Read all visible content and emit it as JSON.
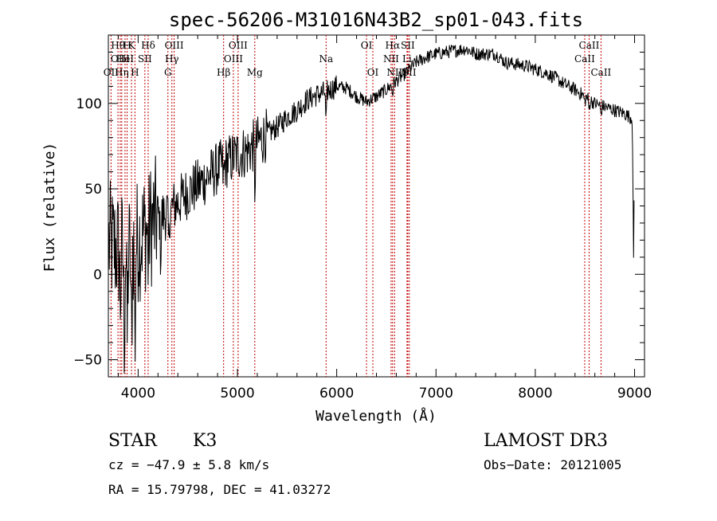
{
  "chart_data": {
    "type": "line",
    "title": "spec-56206-M31016N43B2_sp01-043.fits",
    "xlabel": "Wavelength (Å)",
    "ylabel": "Flux (relative)",
    "xlim": [
      3700,
      9100
    ],
    "ylim": [
      -60,
      140
    ],
    "xticks": [
      4000,
      5000,
      6000,
      7000,
      8000,
      9000
    ],
    "xtick_labels": [
      "4000",
      "5000",
      "6000",
      "7000",
      "8000",
      "9000"
    ],
    "yticks": [
      -50,
      0,
      50,
      100
    ],
    "ytick_labels": [
      "−50",
      "0",
      "50",
      "100"
    ],
    "continuum": [
      [
        3700,
        18
      ],
      [
        3800,
        14
      ],
      [
        3900,
        12
      ],
      [
        4000,
        20
      ],
      [
        4100,
        28
      ],
      [
        4200,
        33
      ],
      [
        4300,
        36
      ],
      [
        4400,
        42
      ],
      [
        4500,
        48
      ],
      [
        4600,
        52
      ],
      [
        4700,
        57
      ],
      [
        4800,
        62
      ],
      [
        4900,
        66
      ],
      [
        5000,
        70
      ],
      [
        5100,
        72
      ],
      [
        5200,
        77
      ],
      [
        5300,
        82
      ],
      [
        5400,
        86
      ],
      [
        5500,
        92
      ],
      [
        5600,
        96
      ],
      [
        5700,
        102
      ],
      [
        5800,
        105
      ],
      [
        5900,
        107
      ],
      [
        6000,
        110
      ],
      [
        6100,
        109
      ],
      [
        6200,
        104
      ],
      [
        6300,
        101
      ],
      [
        6400,
        104
      ],
      [
        6500,
        108
      ],
      [
        6600,
        113
      ],
      [
        6700,
        118
      ],
      [
        6800,
        124
      ],
      [
        6900,
        127
      ],
      [
        7000,
        129
      ],
      [
        7100,
        130
      ],
      [
        7200,
        131
      ],
      [
        7300,
        132
      ],
      [
        7400,
        129
      ],
      [
        7500,
        129
      ],
      [
        7600,
        129
      ],
      [
        7700,
        124
      ],
      [
        7800,
        123
      ],
      [
        7900,
        122
      ],
      [
        8000,
        120
      ],
      [
        8100,
        118
      ],
      [
        8200,
        115
      ],
      [
        8300,
        111
      ],
      [
        8400,
        108
      ],
      [
        8500,
        104
      ],
      [
        8600,
        100
      ],
      [
        8700,
        98
      ],
      [
        8800,
        96
      ],
      [
        8900,
        94
      ],
      [
        8980,
        91
      ]
    ],
    "absorption": [
      {
        "w": 3820,
        "depth": 30
      },
      {
        "w": 3860,
        "depth": 55
      },
      {
        "w": 3890,
        "depth": 50
      },
      {
        "w": 3933,
        "depth": 65
      },
      {
        "w": 3968,
        "depth": 60
      },
      {
        "w": 4101,
        "depth": 20
      },
      {
        "w": 4227,
        "depth": 25
      },
      {
        "w": 4308,
        "depth": 22
      },
      {
        "w": 4861,
        "depth": 10
      },
      {
        "w": 5175,
        "depth": 25
      },
      {
        "w": 5893,
        "depth": 20
      },
      {
        "w": 6563,
        "depth": 6
      },
      {
        "w": 8498,
        "depth": 4
      },
      {
        "w": 8542,
        "depth": 6
      },
      {
        "w": 8662,
        "depth": 6
      },
      {
        "w": 8990,
        "depth": 85
      }
    ],
    "lines": [
      {
        "w": 3727,
        "label": "OII",
        "row": 2
      },
      {
        "w": 3797,
        "label": "Hθ",
        "row": 0
      },
      {
        "w": 3820,
        "label": "OIII",
        "row": 1
      },
      {
        "w": 3835,
        "label": "Hη",
        "row": 2
      },
      {
        "w": 3868,
        "label": "HeI",
        "row": 1
      },
      {
        "w": 3889,
        "label": "H",
        "row": 0
      },
      {
        "w": 3933,
        "label": "K",
        "row": 0
      },
      {
        "w": 3968,
        "label": "H",
        "row": 2
      },
      {
        "w": 4068,
        "label": "SII",
        "row": 1
      },
      {
        "w": 4101,
        "label": "Hδ",
        "row": 0
      },
      {
        "w": 4300,
        "label": "G",
        "row": 2
      },
      {
        "w": 4340,
        "label": "Hγ",
        "row": 1
      },
      {
        "w": 4363,
        "label": "OIII",
        "row": 0
      },
      {
        "w": 4861,
        "label": "Hβ",
        "row": 2
      },
      {
        "w": 4959,
        "label": "OIII",
        "row": 1
      },
      {
        "w": 5007,
        "label": "OIII",
        "row": 0
      },
      {
        "w": 5175,
        "label": "Mg",
        "row": 2
      },
      {
        "w": 5893,
        "label": "Na",
        "row": 1
      },
      {
        "w": 6300,
        "label": "OI",
        "row": 0
      },
      {
        "w": 6364,
        "label": "OI",
        "row": 2
      },
      {
        "w": 6548,
        "label": "NII",
        "row": 1
      },
      {
        "w": 6563,
        "label": "Hα",
        "row": 0
      },
      {
        "w": 6583,
        "label": "NII",
        "row": 2
      },
      {
        "w": 6708,
        "label": "Li",
        "row": 1
      },
      {
        "w": 6716,
        "label": "SII",
        "row": 0
      },
      {
        "w": 6731,
        "label": "SII",
        "row": 2
      },
      {
        "w": 8498,
        "label": "CaII",
        "row": 1
      },
      {
        "w": 8542,
        "label": "CaII",
        "row": 0
      },
      {
        "w": 8662,
        "label": "CaII",
        "row": 2
      }
    ]
  },
  "footer": {
    "object_class": "STAR",
    "subclass": "K3",
    "survey": "LAMOST DR3",
    "redshift": "cz = −47.9 ± 5.8 km/s",
    "obs_date": "Obs−Date: 20121005",
    "coords": "RA =  15.79798, DEC =  41.03272"
  },
  "colors": {
    "line_marker": "#c00000",
    "spectrum": "#000000"
  }
}
